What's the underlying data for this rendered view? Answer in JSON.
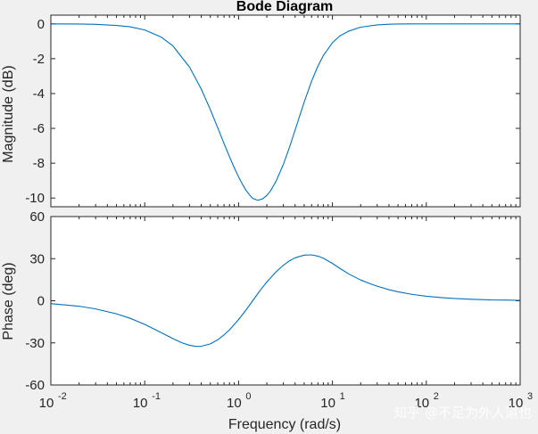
{
  "chart_data": [
    {
      "type": "line",
      "title": "Bode Diagram",
      "xlabel": "",
      "ylabel": "Magnitude (dB)",
      "xscale": "log",
      "xlim": [
        0.01,
        1000
      ],
      "ylim": [
        -10.5,
        0.5
      ],
      "yticks": [
        0,
        -2,
        -4,
        -6,
        -8,
        -10
      ],
      "ytick_labels": [
        "0",
        "-2",
        "-4",
        "-6",
        "-8",
        "-10"
      ],
      "grid": false,
      "series_color": "#0072bd",
      "series": [
        {
          "x": [
            0.01,
            0.02,
            0.03,
            0.05,
            0.07,
            0.1,
            0.15,
            0.2,
            0.3,
            0.4,
            0.5,
            0.6,
            0.7,
            0.8,
            0.9,
            1.0,
            1.1,
            1.2,
            1.3,
            1.414,
            1.6,
            1.8,
            2.0,
            2.2,
            2.5,
            3.0,
            3.5,
            4.0,
            5.0,
            6.0,
            7.0,
            8.0,
            10,
            12,
            15,
            20,
            30,
            40,
            50,
            70,
            100,
            150,
            200,
            300,
            500,
            700,
            1000
          ],
          "y": [
            0.0,
            -0.01,
            -0.03,
            -0.09,
            -0.17,
            -0.35,
            -0.76,
            -1.27,
            -2.48,
            -3.74,
            -4.92,
            -5.97,
            -6.87,
            -7.63,
            -8.26,
            -8.79,
            -9.21,
            -9.55,
            -9.8,
            -10.02,
            -10.13,
            -10.05,
            -9.85,
            -9.57,
            -9.05,
            -8.07,
            -7.06,
            -6.1,
            -4.49,
            -3.29,
            -2.43,
            -1.82,
            -1.08,
            -0.69,
            -0.41,
            -0.19,
            -0.06,
            -0.02,
            -0.01,
            0.0,
            0.0,
            0.0,
            0.0,
            0.0,
            0.0,
            0.0,
            0.0
          ]
        }
      ]
    },
    {
      "type": "line",
      "title": "",
      "xlabel": "Frequency  (rad/s)",
      "ylabel": "Phase (deg)",
      "xscale": "log",
      "xlim": [
        0.01,
        1000
      ],
      "ylim": [
        -60,
        60
      ],
      "xticks": [
        0.01,
        0.1,
        1,
        10,
        100,
        1000
      ],
      "xtick_labels": [
        {
          "base": "10",
          "exp": "-2"
        },
        {
          "base": "10",
          "exp": "-1"
        },
        {
          "base": "10",
          "exp": "0"
        },
        {
          "base": "10",
          "exp": "1"
        },
        {
          "base": "10",
          "exp": "2"
        },
        {
          "base": "10",
          "exp": "3"
        }
      ],
      "yticks": [
        60,
        30,
        0,
        -30,
        -60
      ],
      "ytick_labels": [
        "60",
        "30",
        "0",
        "-30",
        "-60"
      ],
      "grid": false,
      "series_color": "#0072bd",
      "series": [
        {
          "x": [
            0.01,
            0.02,
            0.03,
            0.05,
            0.07,
            0.1,
            0.15,
            0.2,
            0.25,
            0.3,
            0.35,
            0.4,
            0.5,
            0.6,
            0.7,
            0.8,
            1.0,
            1.2,
            1.414,
            1.7,
            2.0,
            2.5,
            3.0,
            3.5,
            4.0,
            5.0,
            6.0,
            7.0,
            8.0,
            10,
            12,
            15,
            20,
            25,
            30,
            40,
            50,
            70,
            100,
            150,
            200,
            300,
            500,
            700,
            1000
          ],
          "y": [
            -2.0,
            -3.9,
            -5.8,
            -9.3,
            -12.5,
            -16.8,
            -22.7,
            -27.0,
            -30.0,
            -31.7,
            -32.5,
            -32.4,
            -30.7,
            -27.8,
            -24.3,
            -20.7,
            -13.4,
            -6.6,
            0.0,
            7.4,
            13.4,
            20.5,
            25.3,
            28.5,
            30.6,
            32.5,
            32.7,
            31.8,
            30.3,
            26.6,
            23.1,
            19.0,
            14.8,
            12.2,
            10.4,
            7.9,
            6.4,
            4.6,
            3.2,
            2.2,
            1.6,
            1.1,
            0.6,
            0.5,
            0.3
          ]
        }
      ]
    }
  ],
  "watermark": {
    "text": "知乎 @不足为外人道也"
  }
}
